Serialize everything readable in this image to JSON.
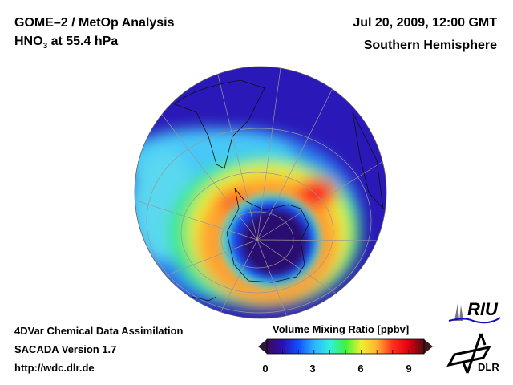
{
  "header": {
    "title_line1": "GOME–2 / MetOp Analysis",
    "title_species": "HNO",
    "title_subscript": "3",
    "title_level": " at 55.4 hPa",
    "date": "Jul 20, 2009, 12:00 GMT",
    "region": "Southern Hemisphere"
  },
  "footer": {
    "line1": "4DVar Chemical Data Assimilation",
    "line2": "SACADA Version 1.7",
    "line3": "http://wdc.dlr.de"
  },
  "colorbar": {
    "label": "Volume Mixing Ratio [ppbv]",
    "ticks": [
      "0",
      "3",
      "6",
      "9"
    ],
    "range": [
      0,
      10
    ],
    "colors": [
      "#3a0a55",
      "#2a10b0",
      "#1050ff",
      "#30b0ff",
      "#30f0e0",
      "#40f040",
      "#f0f030",
      "#ffb030",
      "#ff3020",
      "#e00010",
      "#501010"
    ]
  },
  "logos": {
    "riu": "RIU",
    "dlr": "DLR"
  }
}
